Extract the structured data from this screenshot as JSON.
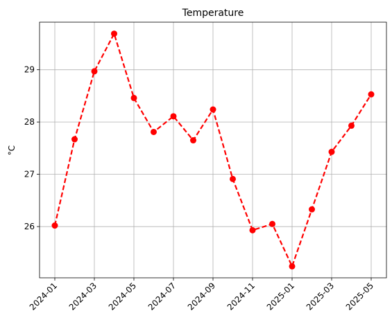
{
  "chart_data": {
    "type": "line",
    "title": "Temperature",
    "xlabel": "",
    "ylabel": "°C",
    "x": [
      "2024-01",
      "2024-02",
      "2024-03",
      "2024-04",
      "2024-05",
      "2024-06",
      "2024-07",
      "2024-08",
      "2024-09",
      "2024-10",
      "2024-11",
      "2024-12",
      "2025-01",
      "2025-02",
      "2025-03",
      "2025-04",
      "2025-05"
    ],
    "series": [
      {
        "values": [
          26.02,
          27.67,
          28.97,
          29.69,
          28.46,
          27.81,
          28.11,
          27.65,
          28.24,
          26.91,
          25.93,
          26.05,
          25.24,
          26.33,
          27.43,
          27.93,
          28.53
        ],
        "color": "#ff0000",
        "line_style": "dashed",
        "marker": "circle"
      }
    ],
    "xticks": [
      "2024-01",
      "2024-03",
      "2024-05",
      "2024-07",
      "2024-09",
      "2024-11",
      "2025-01",
      "2025-03",
      "2025-05"
    ],
    "yticks": [
      26,
      27,
      28,
      29
    ],
    "ylim": [
      25.02,
      29.91
    ],
    "grid": true
  }
}
